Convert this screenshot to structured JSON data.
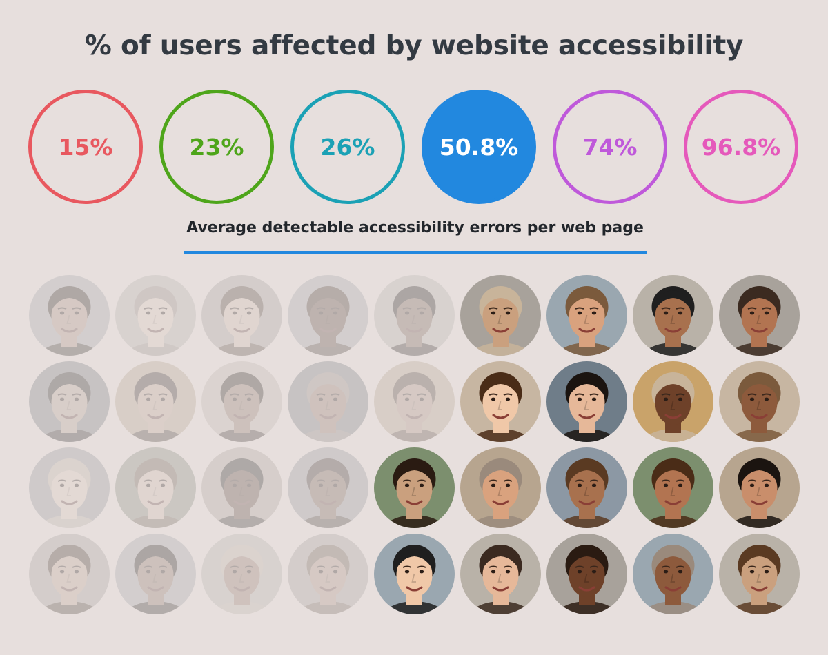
{
  "title": "% of users affected by website accessibility",
  "stats": [
    {
      "label": "15%",
      "color": "#e8585f",
      "filled": false
    },
    {
      "label": "23%",
      "color": "#4ea51a",
      "filled": false
    },
    {
      "label": "26%",
      "color": "#1ba1b5",
      "filled": false
    },
    {
      "label": "50.8%",
      "color": "#2288df",
      "filled": true
    },
    {
      "label": "74%",
      "color": "#bf59da",
      "filled": false
    },
    {
      "label": "96.8%",
      "color": "#e559bb",
      "filled": false
    }
  ],
  "subtitle": "Average detectable accessibility errors per web page",
  "faces": {
    "rows": 4,
    "columns": 9,
    "highlighted_per_row": [
      4,
      4,
      5,
      5
    ],
    "icon": "person-avatar-icon"
  }
}
